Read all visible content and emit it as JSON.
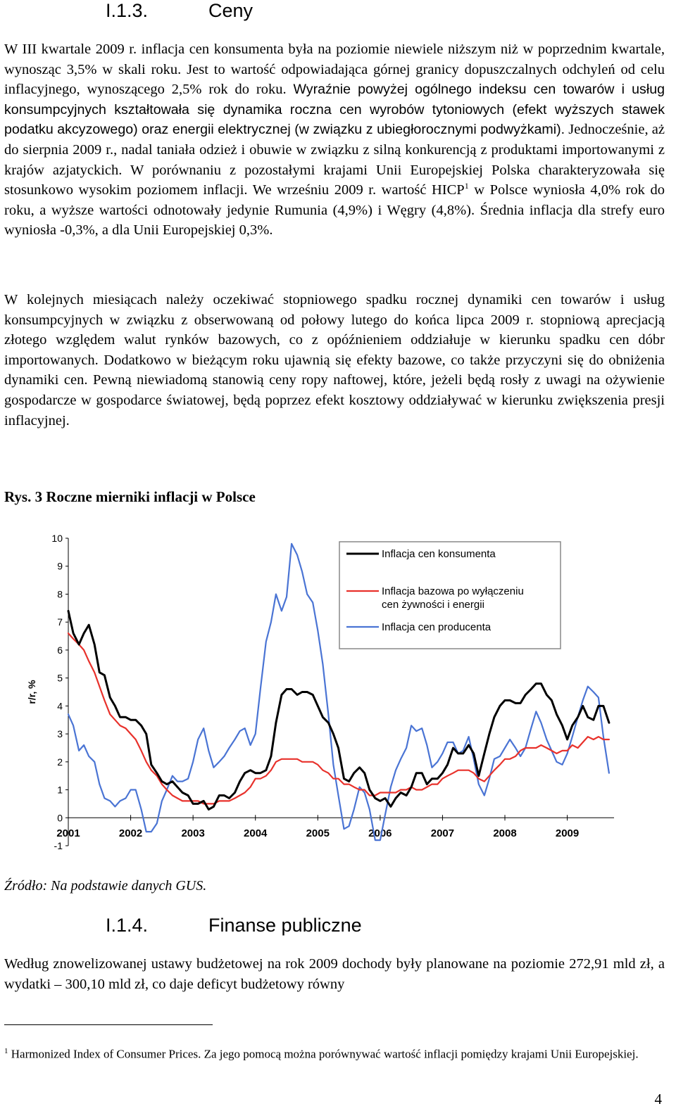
{
  "section1": {
    "number": "I.1.3.",
    "title": "Ceny"
  },
  "p1": {
    "a": "W III kwartale 2009 r. inflacja cen konsumenta była na poziomie niewiele niższym niż w poprzednim kwartale, wynosząc 3,5% w skali roku. Jest to wartość odpowiadająca górnej granicy dopuszczalnych odchyleń od celu inflacyjnego, wynoszącego 2,5% rok do roku.",
    "b": "Wyraźnie powyżej ogólnego indeksu cen towarów i usług konsumpcyjnych kształtowała się dynamika roczna cen wyrobów tytoniowych (efekt wyższych stawek podatku akcyzowego) oraz energii elektrycznej (w związku z ubiegłorocznymi podwyżkami).",
    "c": "Jednocześnie, aż do sierpnia 2009 r., nadal taniała odzież i obuwie w związku z silną konkurencją z produktami importowanymi z krajów azjatyckich. W porównaniu z pozostałymi krajami Unii Europejskiej Polska charakteryzowała się stosunkowo wysokim poziomem inflacji. We wrześniu 2009 r. wartość HICP",
    "sup": "1",
    "d": " w Polsce wyniosła 4,0% rok do roku, a wyższe wartości odnotowały jedynie Rumunia (4,9%) i Węgry (4,8%). Średnia inflacja dla strefy euro wyniosła -0,3%, a dla Unii Europejskiej 0,3%."
  },
  "p2": "W kolejnych miesiącach należy oczekiwać stopniowego spadku rocznej dynamiki cen towarów i usług konsumpcyjnych w związku z obserwowaną od połowy lutego do końca lipca 2009 r. stopniową aprecjacją złotego względem walut rynków bazowych, co z opóźnieniem oddziałuje w kierunku spadku cen dóbr importowanych. Dodatkowo w bieżącym roku ujawnią się efekty bazowe, co także przyczyni się do obniżenia dynamiki cen. Pewną niewiadomą stanowią ceny ropy naftowej, które, jeżeli będą rosły z uwagi na ożywienie gospodarcze w gospodarce światowej, będą poprzez efekt kosztowy oddziaływać w kierunku zwiększenia presji inflacyjnej.",
  "figure_title": "Rys. 3 Roczne mierniki inflacji w Polsce",
  "source": "Źródło: Na podstawie danych GUS.",
  "section2": {
    "number": "I.1.4.",
    "title": "Finanse publiczne"
  },
  "p3": "Według znowelizowanej ustawy budżetowej na rok 2009 dochody były planowane na poziomie 272,91 mld zł, a wydatki – 300,10 mld zł, co daje deficyt budżetowy równy",
  "footnote": {
    "mark": "1",
    "text": "Harmonized Index of Consumer Prices. Za jego pomocą można porównywać wartość inflacji pomiędzy krajami Unii Europejskiej."
  },
  "page_number": "4",
  "colors": {
    "cpi": "#000000",
    "core": "#e8312b",
    "ppi": "#4a74d4"
  },
  "chart_data": {
    "type": "line",
    "title": "",
    "ylabel": "r/r, %",
    "ylim": [
      -1,
      10
    ],
    "yticks": [
      "-1",
      "0",
      "1",
      "2",
      "3",
      "4",
      "5",
      "6",
      "7",
      "8",
      "9",
      "10"
    ],
    "xlim": [
      2001.0,
      2009.75
    ],
    "xticks": [
      "2001",
      "2002",
      "2003",
      "2004",
      "2005",
      "2006",
      "2007",
      "2008",
      "2009"
    ],
    "legend_position": "top-right",
    "series": [
      {
        "name": "Inflacja cen konsumenta",
        "color": "#000000",
        "x": [
          2001.0,
          2001.08,
          2001.17,
          2001.25,
          2001.33,
          2001.42,
          2001.5,
          2001.58,
          2001.67,
          2001.75,
          2001.83,
          2001.92,
          2002.0,
          2002.08,
          2002.17,
          2002.25,
          2002.33,
          2002.42,
          2002.5,
          2002.58,
          2002.67,
          2002.75,
          2002.83,
          2002.92,
          2003.0,
          2003.08,
          2003.17,
          2003.25,
          2003.33,
          2003.42,
          2003.5,
          2003.58,
          2003.67,
          2003.75,
          2003.83,
          2003.92,
          2004.0,
          2004.08,
          2004.17,
          2004.25,
          2004.33,
          2004.42,
          2004.5,
          2004.58,
          2004.67,
          2004.75,
          2004.83,
          2004.92,
          2005.0,
          2005.08,
          2005.17,
          2005.25,
          2005.33,
          2005.42,
          2005.5,
          2005.58,
          2005.67,
          2005.75,
          2005.83,
          2005.92,
          2006.0,
          2006.08,
          2006.17,
          2006.25,
          2006.33,
          2006.42,
          2006.5,
          2006.58,
          2006.67,
          2006.75,
          2006.83,
          2006.92,
          2007.0,
          2007.08,
          2007.17,
          2007.25,
          2007.33,
          2007.42,
          2007.5,
          2007.58,
          2007.67,
          2007.75,
          2007.83,
          2007.92,
          2008.0,
          2008.08,
          2008.17,
          2008.25,
          2008.33,
          2008.42,
          2008.5,
          2008.58,
          2008.67,
          2008.75,
          2008.83,
          2008.92,
          2009.0,
          2009.08,
          2009.17,
          2009.25,
          2009.33,
          2009.42,
          2009.5,
          2009.58,
          2009.67
        ],
        "values": [
          7.4,
          6.6,
          6.2,
          6.6,
          6.9,
          6.2,
          5.2,
          5.1,
          4.3,
          4.0,
          3.6,
          3.6,
          3.5,
          3.5,
          3.3,
          3.0,
          1.9,
          1.6,
          1.3,
          1.2,
          1.3,
          1.1,
          0.9,
          0.8,
          0.5,
          0.5,
          0.6,
          0.3,
          0.4,
          0.8,
          0.8,
          0.7,
          0.9,
          1.3,
          1.6,
          1.7,
          1.6,
          1.6,
          1.7,
          2.2,
          3.4,
          4.4,
          4.6,
          4.6,
          4.4,
          4.5,
          4.5,
          4.4,
          4.0,
          3.6,
          3.4,
          3.0,
          2.5,
          1.4,
          1.3,
          1.6,
          1.8,
          1.6,
          1.0,
          0.7,
          0.6,
          0.7,
          0.4,
          0.7,
          0.9,
          0.8,
          1.1,
          1.6,
          1.6,
          1.2,
          1.4,
          1.4,
          1.6,
          1.9,
          2.5,
          2.3,
          2.3,
          2.6,
          2.3,
          1.5,
          2.3,
          3.0,
          3.6,
          4.0,
          4.2,
          4.2,
          4.1,
          4.1,
          4.4,
          4.6,
          4.8,
          4.8,
          4.4,
          4.2,
          3.7,
          3.3,
          2.8,
          3.3,
          3.6,
          4.0,
          3.6,
          3.5,
          4.0,
          4.0,
          3.4
        ]
      },
      {
        "name": "Inflacja bazowa po wyłączeniu cen żywności i energii",
        "color": "#e8312b",
        "x": [
          2001.0,
          2001.08,
          2001.17,
          2001.25,
          2001.33,
          2001.42,
          2001.5,
          2001.58,
          2001.67,
          2001.75,
          2001.83,
          2001.92,
          2002.0,
          2002.08,
          2002.17,
          2002.25,
          2002.33,
          2002.42,
          2002.5,
          2002.58,
          2002.67,
          2002.75,
          2002.83,
          2002.92,
          2003.0,
          2003.08,
          2003.17,
          2003.25,
          2003.33,
          2003.42,
          2003.5,
          2003.58,
          2003.67,
          2003.75,
          2003.83,
          2003.92,
          2004.0,
          2004.08,
          2004.17,
          2004.25,
          2004.33,
          2004.42,
          2004.5,
          2004.58,
          2004.67,
          2004.75,
          2004.83,
          2004.92,
          2005.0,
          2005.08,
          2005.17,
          2005.25,
          2005.33,
          2005.42,
          2005.5,
          2005.58,
          2005.67,
          2005.75,
          2005.83,
          2005.92,
          2006.0,
          2006.08,
          2006.17,
          2006.25,
          2006.33,
          2006.42,
          2006.5,
          2006.58,
          2006.67,
          2006.75,
          2006.83,
          2006.92,
          2007.0,
          2007.08,
          2007.17,
          2007.25,
          2007.33,
          2007.42,
          2007.5,
          2007.58,
          2007.67,
          2007.75,
          2007.83,
          2007.92,
          2008.0,
          2008.08,
          2008.17,
          2008.25,
          2008.33,
          2008.42,
          2008.5,
          2008.58,
          2008.67,
          2008.75,
          2008.83,
          2008.92,
          2009.0,
          2009.08,
          2009.17,
          2009.25,
          2009.33,
          2009.42,
          2009.5,
          2009.58,
          2009.67
        ],
        "values": [
          6.6,
          6.4,
          6.2,
          6.0,
          5.6,
          5.2,
          4.7,
          4.2,
          3.7,
          3.5,
          3.3,
          3.2,
          3.0,
          2.8,
          2.4,
          2.0,
          1.7,
          1.5,
          1.2,
          1.0,
          0.8,
          0.7,
          0.6,
          0.6,
          0.6,
          0.6,
          0.5,
          0.5,
          0.5,
          0.6,
          0.6,
          0.6,
          0.7,
          0.8,
          0.9,
          1.1,
          1.4,
          1.4,
          1.5,
          1.7,
          2.0,
          2.1,
          2.1,
          2.1,
          2.1,
          2.0,
          2.0,
          2.0,
          1.9,
          1.7,
          1.6,
          1.4,
          1.4,
          1.2,
          1.2,
          1.1,
          1.0,
          1.0,
          0.8,
          0.8,
          0.9,
          0.9,
          0.9,
          0.9,
          1.0,
          1.0,
          1.1,
          1.0,
          1.0,
          1.1,
          1.2,
          1.2,
          1.4,
          1.5,
          1.6,
          1.7,
          1.7,
          1.7,
          1.6,
          1.4,
          1.3,
          1.5,
          1.7,
          1.9,
          2.1,
          2.1,
          2.2,
          2.4,
          2.5,
          2.5,
          2.5,
          2.6,
          2.5,
          2.4,
          2.3,
          2.4,
          2.4,
          2.6,
          2.5,
          2.7,
          2.9,
          2.8,
          2.9,
          2.8,
          2.8
        ]
      },
      {
        "name": "Inflacja cen producenta",
        "color": "#4a74d4",
        "x": [
          2001.0,
          2001.08,
          2001.17,
          2001.25,
          2001.33,
          2001.42,
          2001.5,
          2001.58,
          2001.67,
          2001.75,
          2001.83,
          2001.92,
          2002.0,
          2002.08,
          2002.17,
          2002.25,
          2002.33,
          2002.42,
          2002.5,
          2002.58,
          2002.67,
          2002.75,
          2002.83,
          2002.92,
          2003.0,
          2003.08,
          2003.17,
          2003.25,
          2003.33,
          2003.42,
          2003.5,
          2003.58,
          2003.67,
          2003.75,
          2003.83,
          2003.92,
          2004.0,
          2004.08,
          2004.17,
          2004.25,
          2004.33,
          2004.42,
          2004.5,
          2004.58,
          2004.67,
          2004.75,
          2004.83,
          2004.92,
          2005.0,
          2005.08,
          2005.17,
          2005.25,
          2005.33,
          2005.42,
          2005.5,
          2005.58,
          2005.67,
          2005.75,
          2005.83,
          2005.92,
          2006.0,
          2006.08,
          2006.17,
          2006.25,
          2006.33,
          2006.42,
          2006.5,
          2006.58,
          2006.67,
          2006.75,
          2006.83,
          2006.92,
          2007.0,
          2007.08,
          2007.17,
          2007.25,
          2007.33,
          2007.42,
          2007.5,
          2007.58,
          2007.67,
          2007.75,
          2007.83,
          2007.92,
          2008.0,
          2008.08,
          2008.17,
          2008.25,
          2008.33,
          2008.42,
          2008.5,
          2008.58,
          2008.67,
          2008.75,
          2008.83,
          2008.92,
          2009.0,
          2009.08,
          2009.17,
          2009.25,
          2009.33,
          2009.42,
          2009.5,
          2009.58,
          2009.67
        ],
        "values": [
          3.7,
          3.3,
          2.4,
          2.6,
          2.2,
          2.0,
          1.2,
          0.7,
          0.6,
          0.4,
          0.6,
          0.7,
          1.0,
          1.0,
          0.3,
          -0.5,
          -0.5,
          -0.2,
          0.6,
          1.0,
          1.5,
          1.3,
          1.3,
          1.4,
          2.0,
          2.8,
          3.2,
          2.4,
          1.8,
          2.0,
          2.2,
          2.5,
          2.8,
          3.1,
          3.2,
          2.6,
          3.0,
          4.6,
          6.3,
          7.0,
          8.0,
          7.4,
          7.9,
          9.8,
          9.4,
          8.8,
          8.0,
          7.7,
          6.7,
          5.5,
          3.7,
          1.9,
          0.8,
          -0.4,
          -0.3,
          0.3,
          1.1,
          0.9,
          0.3,
          -0.8,
          -0.8,
          0.1,
          1.1,
          1.7,
          2.1,
          2.5,
          3.3,
          3.1,
          3.2,
          2.6,
          1.8,
          2.0,
          2.3,
          2.7,
          2.7,
          2.3,
          2.4,
          2.9,
          2.1,
          1.2,
          0.8,
          1.4,
          2.1,
          2.2,
          2.5,
          2.8,
          2.5,
          2.2,
          2.5,
          3.2,
          3.8,
          3.4,
          2.8,
          2.4,
          2.0,
          1.9,
          2.3,
          2.9,
          3.6,
          4.2,
          4.7,
          4.5,
          4.3,
          2.9,
          1.6
        ]
      }
    ]
  }
}
